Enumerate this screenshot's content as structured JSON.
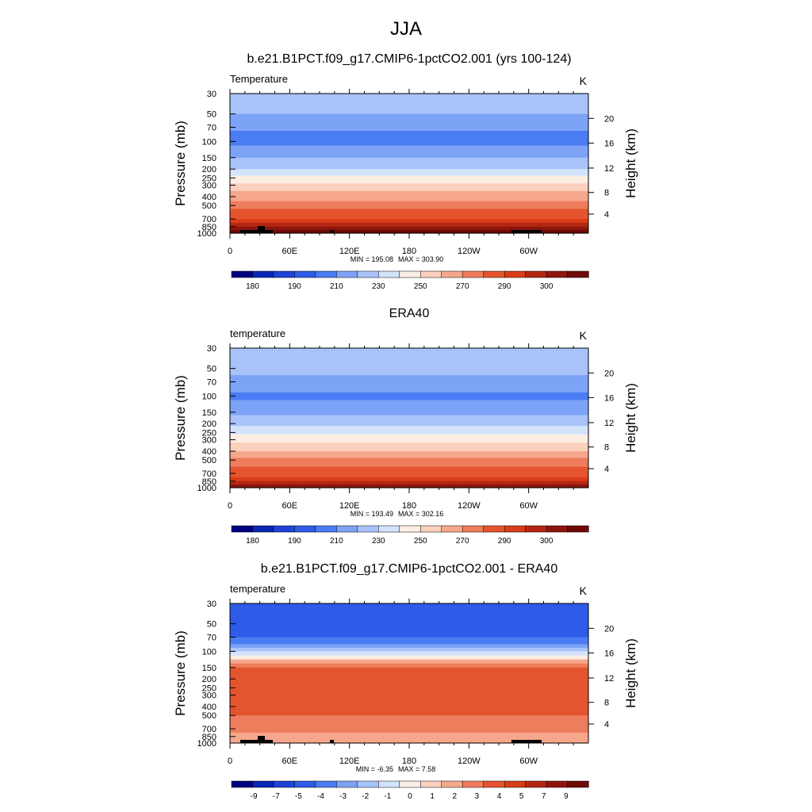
{
  "figure_title": "JJA",
  "colorbar_palette": [
    "#000080",
    "#0a26b4",
    "#1e42d7",
    "#2e5be8",
    "#4a7cf3",
    "#7da3f7",
    "#a8c3fa",
    "#d3e3fc",
    "#fdeee4",
    "#fbd0bc",
    "#f6a78c",
    "#ee7d5d",
    "#e4552f",
    "#d93c17",
    "#b32712",
    "#8d150d",
    "#6e0a07"
  ],
  "chart_data": [
    {
      "type": "heatmap",
      "title": "b.e21.B1PCT.f09_g17.CMIP6-1pctCO2.001 (yrs 100-124)",
      "var_label": "Temperature",
      "units": "K",
      "ylabel": "Pressure (mb)",
      "ylabel_right": "Height (km)",
      "xlabel": "",
      "x_ticks": [
        "0",
        "60E",
        "120E",
        "180",
        "120W",
        "60W"
      ],
      "y_ticks": [
        "30",
        "50",
        "70",
        "100",
        "150",
        "200",
        "250",
        "300",
        "400",
        "500",
        "700",
        "850",
        "1000"
      ],
      "height_ticks": [
        "4",
        "8",
        "12",
        "16",
        "20"
      ],
      "min_label": "MIN = 195.08",
      "max_label": "MAX = 303.90",
      "colorbar_ticks": [
        "180",
        "190",
        "210",
        "230",
        "250",
        "270",
        "290",
        "300"
      ],
      "levels": [
        {
          "p": 30,
          "t": 218
        },
        {
          "p": 50,
          "t": 211
        },
        {
          "p": 70,
          "t": 202
        },
        {
          "p": 100,
          "t": 196
        },
        {
          "p": 150,
          "t": 210
        },
        {
          "p": 200,
          "t": 220
        },
        {
          "p": 250,
          "t": 233
        },
        {
          "p": 300,
          "t": 242
        },
        {
          "p": 400,
          "t": 256
        },
        {
          "p": 500,
          "t": 266
        },
        {
          "p": 700,
          "t": 280
        },
        {
          "p": 850,
          "t": 290
        },
        {
          "p": 1000,
          "t": 298
        }
      ]
    },
    {
      "type": "heatmap",
      "title": "ERA40",
      "var_label": "temperature",
      "units": "K",
      "ylabel": "Pressure (mb)",
      "ylabel_right": "Height (km)",
      "xlabel": "",
      "x_ticks": [
        "0",
        "60E",
        "120E",
        "180",
        "120W",
        "60W"
      ],
      "y_ticks": [
        "30",
        "50",
        "70",
        "100",
        "150",
        "200",
        "250",
        "300",
        "400",
        "500",
        "700",
        "850",
        "1000"
      ],
      "height_ticks": [
        "4",
        "8",
        "12",
        "16",
        "20"
      ],
      "min_label": "MIN = 193.49",
      "max_label": "MAX = 302.16",
      "colorbar_ticks": [
        "180",
        "190",
        "210",
        "230",
        "250",
        "270",
        "290",
        "300"
      ],
      "levels": [
        {
          "p": 30,
          "t": 218
        },
        {
          "p": 50,
          "t": 212
        },
        {
          "p": 70,
          "t": 207
        },
        {
          "p": 100,
          "t": 197
        },
        {
          "p": 150,
          "t": 207
        },
        {
          "p": 200,
          "t": 217
        },
        {
          "p": 250,
          "t": 228
        },
        {
          "p": 300,
          "t": 237
        },
        {
          "p": 400,
          "t": 250
        },
        {
          "p": 500,
          "t": 262
        },
        {
          "p": 700,
          "t": 276
        },
        {
          "p": 850,
          "t": 285
        },
        {
          "p": 1000,
          "t": 294
        }
      ]
    },
    {
      "type": "heatmap",
      "title": "b.e21.B1PCT.f09_g17.CMIP6-1pctCO2.001 - ERA40",
      "var_label": "temperature",
      "units": "K",
      "ylabel": "Pressure (mb)",
      "ylabel_right": "Height (km)",
      "xlabel": "",
      "x_ticks": [
        "0",
        "60E",
        "120E",
        "180",
        "120W",
        "60W"
      ],
      "y_ticks": [
        "30",
        "50",
        "70",
        "100",
        "150",
        "200",
        "250",
        "300",
        "400",
        "500",
        "700",
        "850",
        "1000"
      ],
      "height_ticks": [
        "4",
        "8",
        "12",
        "16",
        "20"
      ],
      "min_label": "MIN =  -6.35",
      "max_label": "MAX =   7.58",
      "colorbar_ticks": [
        "-9",
        "-7",
        "-5",
        "-4",
        "-3",
        "-2",
        "-1",
        "0",
        "1",
        "2",
        "3",
        "4",
        "5",
        "7",
        "9"
      ],
      "levels": [
        {
          "p": 30,
          "d": -4.5
        },
        {
          "p": 50,
          "d": -4.5
        },
        {
          "p": 70,
          "d": -3.8
        },
        {
          "p": 100,
          "d": -0.5
        },
        {
          "p": 150,
          "d": 4.5
        },
        {
          "p": 200,
          "d": 5
        },
        {
          "p": 250,
          "d": 5
        },
        {
          "p": 300,
          "d": 5.5
        },
        {
          "p": 400,
          "d": 5
        },
        {
          "p": 500,
          "d": 4.5
        },
        {
          "p": 700,
          "d": 4
        },
        {
          "p": 850,
          "d": 3
        },
        {
          "p": 1000,
          "d": 3
        }
      ]
    }
  ]
}
